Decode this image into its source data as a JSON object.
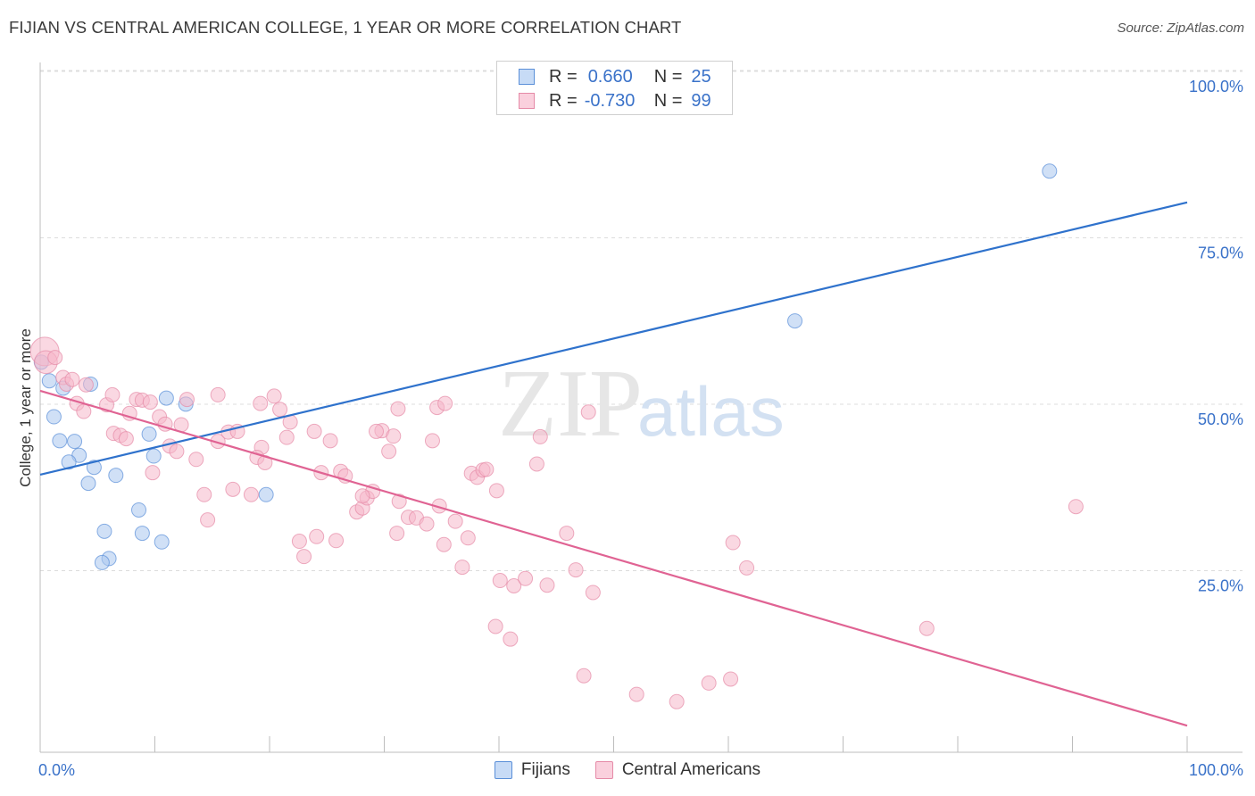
{
  "header": {
    "title": "FIJIAN VS CENTRAL AMERICAN COLLEGE, 1 YEAR OR MORE CORRELATION CHART",
    "source": "Source: ZipAtlas.com"
  },
  "legend": {
    "rows": [
      {
        "r_label": "R =",
        "r_value": "0.660",
        "n_label": "N =",
        "n_value": "25",
        "color": "#a9c6ef"
      },
      {
        "r_label": "R =",
        "r_value": "-0.730",
        "n_label": "N =",
        "n_value": "99",
        "color": "#f5b8cb"
      }
    ]
  },
  "bottom_legend": [
    {
      "label": "Fijians",
      "color": "#a9c6ef"
    },
    {
      "label": "Central Americans",
      "color": "#f5b8cb"
    }
  ],
  "watermark": {
    "zip": "ZIP",
    "atlas": "atlas"
  },
  "chart_data": {
    "type": "scatter",
    "title": "FIJIAN VS CENTRAL AMERICAN COLLEGE, 1 YEAR OR MORE CORRELATION CHART",
    "xlabel": "",
    "ylabel": "College, 1 year or more",
    "xlim": [
      0,
      100
    ],
    "ylim": [
      0,
      105
    ],
    "x_tick_labels": [
      {
        "value": 0,
        "label": "0.0%"
      },
      {
        "value": 100,
        "label": "100.0%"
      }
    ],
    "y_tick_labels": [
      {
        "value": 25,
        "label": "25.0%"
      },
      {
        "value": 50,
        "label": "50.0%"
      },
      {
        "value": 75,
        "label": "75.0%"
      },
      {
        "value": 100,
        "label": "100.0%"
      }
    ],
    "y_gridlines": [
      25,
      50,
      75,
      100
    ],
    "series": [
      {
        "name": "Fijians",
        "color": "#a9c6ef",
        "edge": "#5a8fd8",
        "line_color": "#2f72cc",
        "trend": {
          "x": [
            0,
            100
          ],
          "y": [
            41.7,
            82.6
          ]
        },
        "points": [
          {
            "x": 0.1,
            "y": 58.6
          },
          {
            "x": 0.8,
            "y": 55.8
          },
          {
            "x": 2.0,
            "y": 54.7
          },
          {
            "x": 1.2,
            "y": 50.4
          },
          {
            "x": 1.7,
            "y": 46.8
          },
          {
            "x": 3.0,
            "y": 46.7
          },
          {
            "x": 3.4,
            "y": 44.6
          },
          {
            "x": 2.5,
            "y": 43.6
          },
          {
            "x": 4.7,
            "y": 42.8
          },
          {
            "x": 4.2,
            "y": 40.4
          },
          {
            "x": 6.6,
            "y": 41.6
          },
          {
            "x": 4.4,
            "y": 55.3
          },
          {
            "x": 9.5,
            "y": 47.8
          },
          {
            "x": 9.9,
            "y": 44.5
          },
          {
            "x": 11.0,
            "y": 53.2
          },
          {
            "x": 12.7,
            "y": 52.3
          },
          {
            "x": 8.6,
            "y": 36.4
          },
          {
            "x": 8.9,
            "y": 32.9
          },
          {
            "x": 5.6,
            "y": 33.2
          },
          {
            "x": 10.6,
            "y": 31.6
          },
          {
            "x": 6.0,
            "y": 29.1
          },
          {
            "x": 5.4,
            "y": 28.5
          },
          {
            "x": 19.7,
            "y": 38.7
          },
          {
            "x": 65.8,
            "y": 64.8
          },
          {
            "x": 88.0,
            "y": 87.3
          }
        ]
      },
      {
        "name": "Central Americans",
        "color": "#f5b8cb",
        "edge": "#e58aa7",
        "line_color": "#e06393",
        "trend": {
          "x": [
            0,
            100
          ],
          "y": [
            54.3,
            4.0
          ]
        },
        "points": [
          {
            "x": 0.4,
            "y": 60.2,
            "s": 2.0
          },
          {
            "x": 0.5,
            "y": 58.6,
            "s": 1.6
          },
          {
            "x": 1.3,
            "y": 59.3
          },
          {
            "x": 2.0,
            "y": 56.3
          },
          {
            "x": 2.3,
            "y": 55.3
          },
          {
            "x": 2.8,
            "y": 56.0
          },
          {
            "x": 4.0,
            "y": 55.2
          },
          {
            "x": 3.2,
            "y": 52.4
          },
          {
            "x": 3.8,
            "y": 51.2
          },
          {
            "x": 5.8,
            "y": 52.2
          },
          {
            "x": 6.3,
            "y": 53.7
          },
          {
            "x": 7.8,
            "y": 50.9
          },
          {
            "x": 8.4,
            "y": 53.0
          },
          {
            "x": 8.9,
            "y": 52.9
          },
          {
            "x": 9.6,
            "y": 52.6
          },
          {
            "x": 10.4,
            "y": 50.4
          },
          {
            "x": 10.9,
            "y": 49.3
          },
          {
            "x": 12.3,
            "y": 49.2
          },
          {
            "x": 12.8,
            "y": 53.0
          },
          {
            "x": 6.4,
            "y": 47.9
          },
          {
            "x": 7.0,
            "y": 47.6
          },
          {
            "x": 7.5,
            "y": 47.1
          },
          {
            "x": 11.3,
            "y": 46.0
          },
          {
            "x": 11.9,
            "y": 45.2
          },
          {
            "x": 13.6,
            "y": 44.0
          },
          {
            "x": 9.8,
            "y": 42.0
          },
          {
            "x": 15.5,
            "y": 46.7
          },
          {
            "x": 16.4,
            "y": 48.1
          },
          {
            "x": 17.2,
            "y": 48.2
          },
          {
            "x": 15.5,
            "y": 53.7
          },
          {
            "x": 19.2,
            "y": 52.4
          },
          {
            "x": 20.4,
            "y": 53.5
          },
          {
            "x": 20.9,
            "y": 51.5
          },
          {
            "x": 21.5,
            "y": 47.3
          },
          {
            "x": 21.8,
            "y": 49.6
          },
          {
            "x": 19.3,
            "y": 45.8
          },
          {
            "x": 18.9,
            "y": 44.3
          },
          {
            "x": 19.6,
            "y": 43.5
          },
          {
            "x": 14.3,
            "y": 38.7
          },
          {
            "x": 14.6,
            "y": 34.9
          },
          {
            "x": 16.8,
            "y": 39.5
          },
          {
            "x": 18.4,
            "y": 38.7
          },
          {
            "x": 23.9,
            "y": 48.2
          },
          {
            "x": 24.5,
            "y": 42.0
          },
          {
            "x": 25.3,
            "y": 46.8
          },
          {
            "x": 26.2,
            "y": 42.2
          },
          {
            "x": 26.6,
            "y": 41.5
          },
          {
            "x": 27.6,
            "y": 36.1
          },
          {
            "x": 28.1,
            "y": 36.7
          },
          {
            "x": 28.5,
            "y": 38.2
          },
          {
            "x": 29.0,
            "y": 39.2
          },
          {
            "x": 28.1,
            "y": 38.5
          },
          {
            "x": 22.6,
            "y": 31.7
          },
          {
            "x": 23.0,
            "y": 29.4
          },
          {
            "x": 24.1,
            "y": 32.4
          },
          {
            "x": 25.8,
            "y": 31.8
          },
          {
            "x": 29.8,
            "y": 48.3
          },
          {
            "x": 29.3,
            "y": 48.2
          },
          {
            "x": 30.4,
            "y": 45.2
          },
          {
            "x": 30.8,
            "y": 47.5
          },
          {
            "x": 31.3,
            "y": 37.7
          },
          {
            "x": 31.1,
            "y": 32.9
          },
          {
            "x": 32.1,
            "y": 35.3
          },
          {
            "x": 32.8,
            "y": 35.2
          },
          {
            "x": 33.7,
            "y": 34.3
          },
          {
            "x": 34.2,
            "y": 46.8
          },
          {
            "x": 34.8,
            "y": 37.0
          },
          {
            "x": 35.2,
            "y": 31.2
          },
          {
            "x": 36.2,
            "y": 34.7
          },
          {
            "x": 36.8,
            "y": 27.8
          },
          {
            "x": 37.3,
            "y": 32.2
          },
          {
            "x": 37.6,
            "y": 41.9
          },
          {
            "x": 38.1,
            "y": 41.3
          },
          {
            "x": 38.6,
            "y": 42.4
          },
          {
            "x": 38.9,
            "y": 42.5
          },
          {
            "x": 39.8,
            "y": 39.3
          },
          {
            "x": 40.1,
            "y": 25.8
          },
          {
            "x": 41.3,
            "y": 25.0
          },
          {
            "x": 42.3,
            "y": 26.1
          },
          {
            "x": 43.3,
            "y": 43.3
          },
          {
            "x": 43.6,
            "y": 47.4
          },
          {
            "x": 34.6,
            "y": 51.8
          },
          {
            "x": 31.2,
            "y": 51.6
          },
          {
            "x": 35.3,
            "y": 52.4
          },
          {
            "x": 44.2,
            "y": 25.1
          },
          {
            "x": 45.9,
            "y": 32.9
          },
          {
            "x": 46.7,
            "y": 27.4
          },
          {
            "x": 48.2,
            "y": 24.0
          },
          {
            "x": 47.8,
            "y": 51.1
          },
          {
            "x": 39.7,
            "y": 18.9
          },
          {
            "x": 41.0,
            "y": 17.0
          },
          {
            "x": 47.4,
            "y": 11.5
          },
          {
            "x": 52.0,
            "y": 8.7
          },
          {
            "x": 55.5,
            "y": 7.6
          },
          {
            "x": 58.3,
            "y": 10.4
          },
          {
            "x": 60.2,
            "y": 11.0
          },
          {
            "x": 60.4,
            "y": 31.5
          },
          {
            "x": 61.6,
            "y": 27.7
          },
          {
            "x": 77.3,
            "y": 18.6
          },
          {
            "x": 90.3,
            "y": 36.9
          }
        ]
      }
    ]
  }
}
